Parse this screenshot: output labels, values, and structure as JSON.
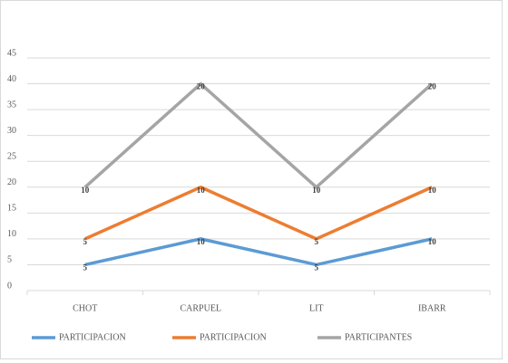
{
  "chart_data": {
    "type": "line",
    "stacked": true,
    "categories": [
      "CHOT",
      "CARPUEL",
      "LIT",
      "IBARR"
    ],
    "series": [
      {
        "name": "PARTICIPACION",
        "color": "#5b9bd5",
        "values": [
          5,
          10,
          5,
          10
        ]
      },
      {
        "name": "PARTICIPACION",
        "color": "#ed7d31",
        "values": [
          5,
          10,
          5,
          10
        ]
      },
      {
        "name": "PARTICIPANTES",
        "color": "#a5a5a5",
        "values": [
          10,
          20,
          10,
          20
        ]
      }
    ],
    "ylim": [
      0,
      45
    ],
    "yticks": [
      0,
      5,
      10,
      15,
      20,
      25,
      30,
      35,
      40,
      45
    ],
    "grid": true,
    "legend": "bottom"
  }
}
